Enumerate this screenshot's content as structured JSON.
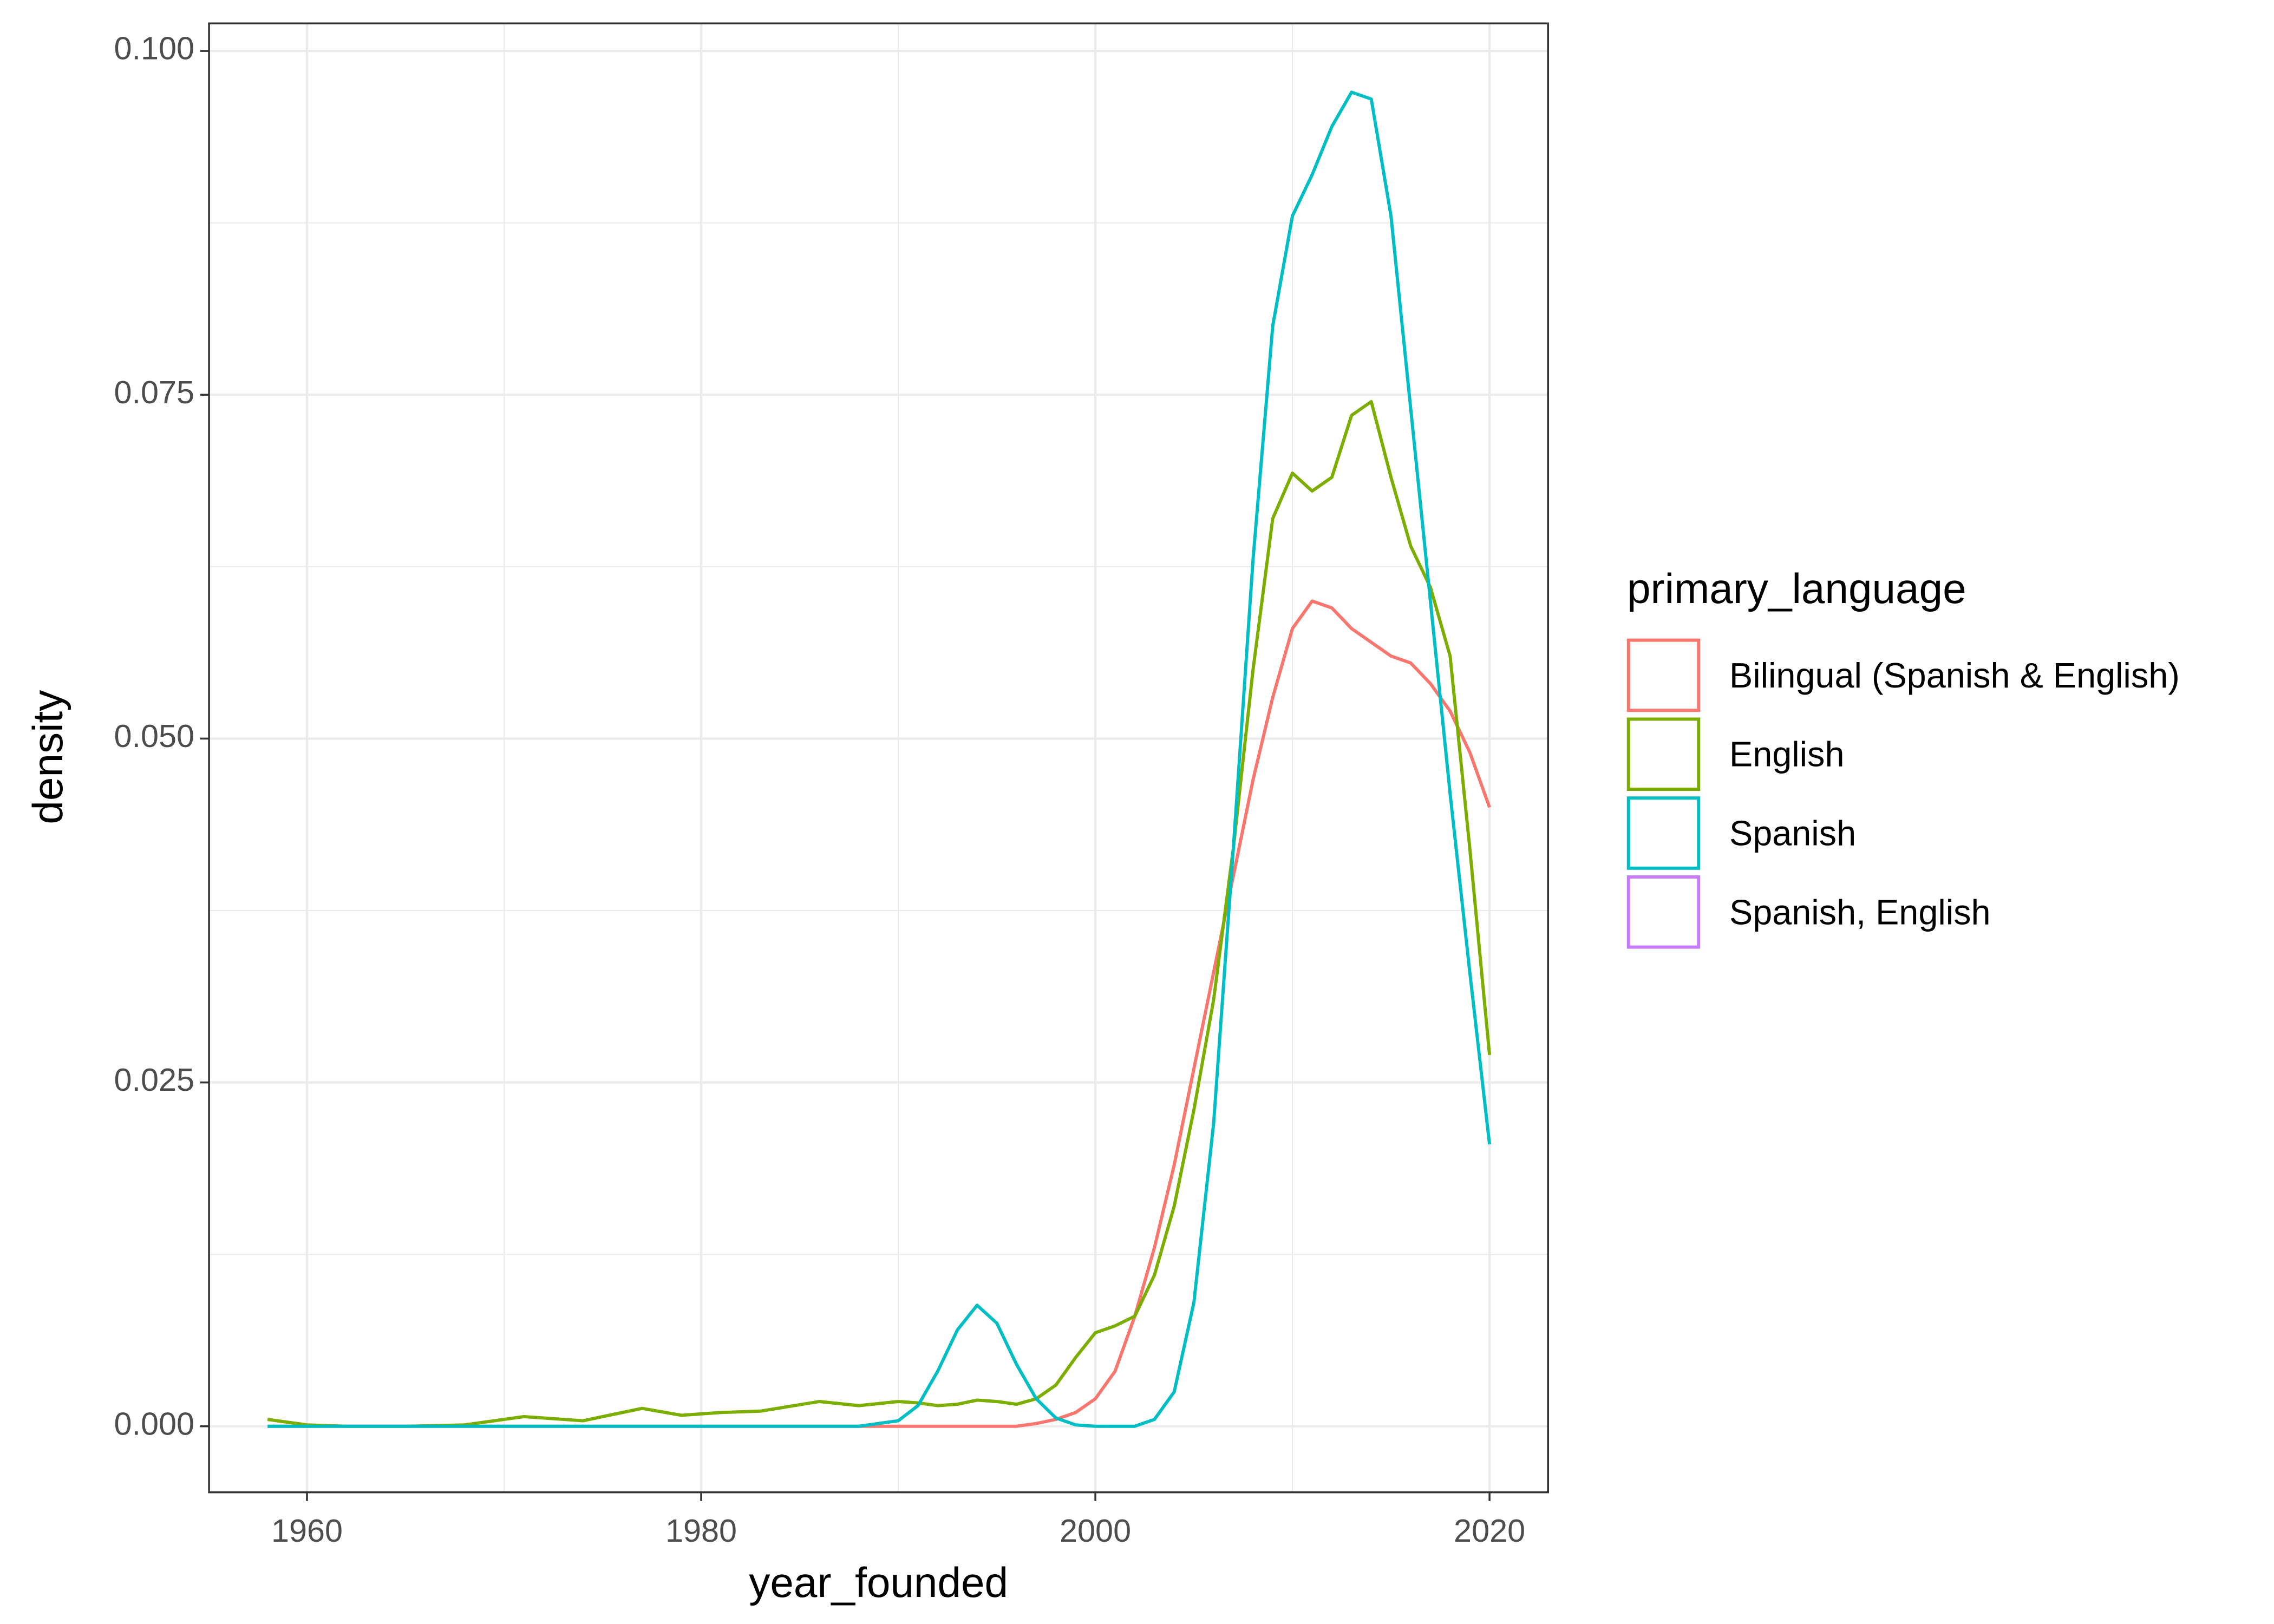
{
  "chart_data": {
    "type": "line",
    "x_label": "year_founded",
    "y_label": "density",
    "legend_title": "primary_language",
    "x": [
      1958,
      1960,
      1962,
      1965,
      1968,
      1971,
      1974,
      1977,
      1979,
      1981,
      1983,
      1986,
      1988,
      1990,
      1991,
      1992,
      1993,
      1994,
      1995,
      1996,
      1997,
      1998,
      1999,
      2000,
      2001,
      2002,
      2003,
      2004,
      2005,
      2006,
      2007,
      2008,
      2009,
      2010,
      2011,
      2012,
      2013,
      2014,
      2015,
      2016,
      2017,
      2018,
      2019,
      2020
    ],
    "series": [
      {
        "name": "Bilingual (Spanish & English)",
        "color": "#f8766d",
        "values": [
          0,
          0,
          0,
          0,
          0,
          0,
          0,
          0,
          0,
          0,
          0,
          0,
          0,
          0,
          0,
          0,
          0,
          0,
          0,
          0,
          0.0002,
          0.0005,
          0.001,
          0.002,
          0.004,
          0.008,
          0.013,
          0.019,
          0.026,
          0.033,
          0.04,
          0.047,
          0.053,
          0.058,
          0.06,
          0.0595,
          0.058,
          0.057,
          0.056,
          0.0555,
          0.054,
          0.052,
          0.049,
          0.045
        ]
      },
      {
        "name": "English",
        "color": "#7cae00",
        "values": [
          0.0005,
          0.0001,
          0,
          0,
          0.0001,
          0.0007,
          0.0004,
          0.0013,
          0.0008,
          0.001,
          0.0011,
          0.0018,
          0.0015,
          0.0018,
          0.0017,
          0.0015,
          0.0016,
          0.0019,
          0.0018,
          0.0016,
          0.002,
          0.003,
          0.005,
          0.0068,
          0.0073,
          0.008,
          0.011,
          0.016,
          0.023,
          0.031,
          0.042,
          0.055,
          0.066,
          0.0693,
          0.068,
          0.069,
          0.0735,
          0.0745,
          0.069,
          0.064,
          0.061,
          0.056,
          0.042,
          0.027
        ]
      },
      {
        "name": "Spanish",
        "color": "#00bfc4",
        "values": [
          0,
          0,
          0,
          0,
          0,
          0,
          0,
          0,
          0,
          0,
          0,
          0,
          0,
          0.0004,
          0.0015,
          0.004,
          0.007,
          0.0088,
          0.0075,
          0.0045,
          0.002,
          0.0006,
          0.0001,
          0,
          0,
          0,
          0.0005,
          0.0025,
          0.009,
          0.022,
          0.042,
          0.063,
          0.08,
          0.088,
          0.091,
          0.0945,
          0.097,
          0.0965,
          0.088,
          0.074,
          0.06,
          0.046,
          0.033,
          0.0205
        ]
      },
      {
        "name": "Spanish, English",
        "color": "#c77cff",
        "values": [
          null,
          null,
          null,
          null,
          null,
          null,
          null,
          null,
          null,
          null,
          null,
          null,
          null,
          null,
          null,
          null,
          null,
          null,
          null,
          null,
          null,
          null,
          null,
          null,
          null,
          null,
          null,
          null,
          null,
          null,
          null,
          null,
          null,
          null,
          null,
          null,
          null,
          null,
          null,
          null,
          null,
          null,
          null,
          null
        ]
      }
    ],
    "xlim": [
      1955.03,
      2022.97
    ],
    "ylim": [
      -0.0048,
      0.102
    ],
    "xticks": [
      1960,
      1980,
      2000,
      2020
    ],
    "yticks": [
      {
        "value": 0,
        "label": "0.000"
      },
      {
        "value": 0.025,
        "label": "0.025"
      },
      {
        "value": 0.05,
        "label": "0.050"
      },
      {
        "value": 0.075,
        "label": "0.075"
      },
      {
        "value": 0.1,
        "label": "0.100"
      }
    ],
    "grid": true
  }
}
